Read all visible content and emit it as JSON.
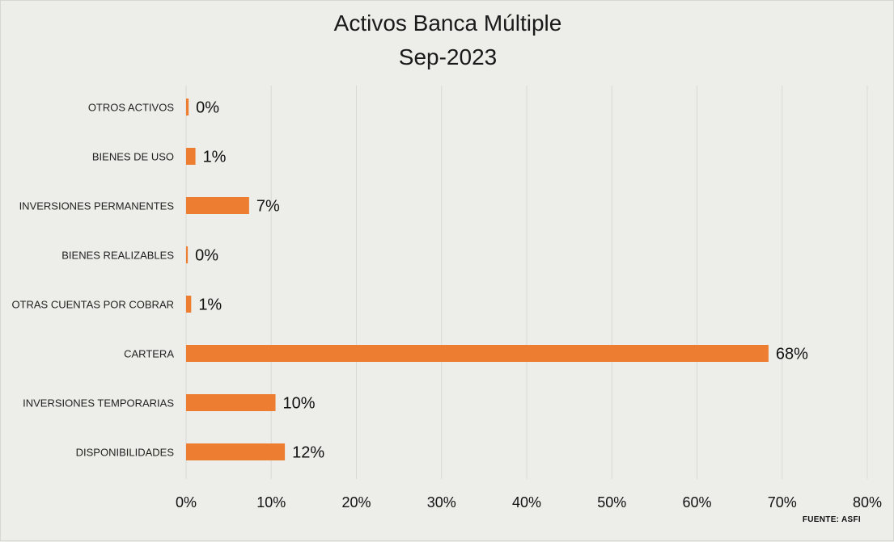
{
  "chart_data": {
    "type": "bar",
    "orientation": "horizontal",
    "title": "Activos Banca Múltiple",
    "subtitle": "Sep-2023",
    "categories": [
      "OTROS ACTIVOS",
      "BIENES DE USO",
      "INVERSIONES PERMANENTES",
      "BIENES REALIZABLES",
      "OTRAS CUENTAS POR COBRAR",
      "CARTERA",
      "INVERSIONES TEMPORARIAS",
      "DISPONIBILIDADES"
    ],
    "values": [
      0.3,
      1.1,
      7.4,
      0.2,
      0.6,
      68.4,
      10.5,
      11.6
    ],
    "value_labels": [
      "0%",
      "1%",
      "7%",
      "0%",
      "1%",
      "68%",
      "10%",
      "12%"
    ],
    "x_ticks": [
      "0%",
      "10%",
      "20%",
      "30%",
      "40%",
      "50%",
      "60%",
      "70%",
      "80%"
    ],
    "xlim": [
      0,
      80
    ],
    "grid": "vertical",
    "bar_color": "#ed7d31",
    "source": "FUENTE:  ASFI"
  }
}
